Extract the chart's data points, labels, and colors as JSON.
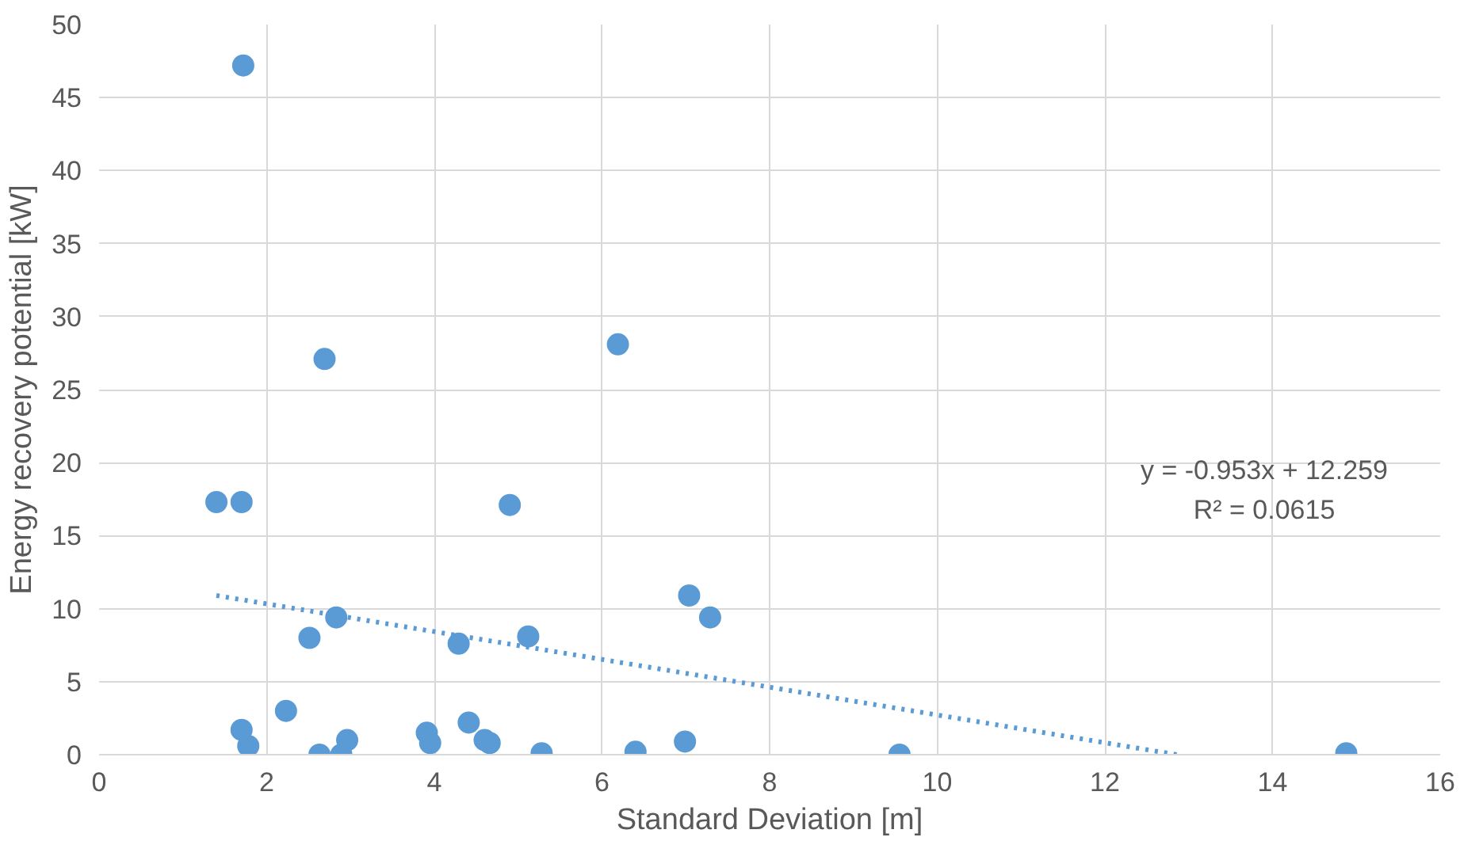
{
  "chart_data": {
    "type": "scatter",
    "xlabel": "Standard Deviation [m]",
    "ylabel": "Energy recovery potential [kW]",
    "xlim": [
      0,
      16
    ],
    "ylim": [
      0,
      50
    ],
    "xticks": [
      0,
      2,
      4,
      6,
      8,
      10,
      12,
      14,
      16
    ],
    "yticks": [
      0,
      5,
      10,
      15,
      20,
      25,
      30,
      35,
      40,
      45,
      50
    ],
    "grid": true,
    "series": [
      {
        "marker": "circle",
        "color": "#5b9bd5",
        "x": [
          1.72,
          1.4,
          1.7,
          2.69,
          6.19,
          4.9,
          2.51,
          2.83,
          4.29,
          5.12,
          7.04,
          7.29,
          2.23,
          1.7,
          1.78,
          2.63,
          2.89,
          2.96,
          3.91,
          3.95,
          4.41,
          4.6,
          4.66,
          5.28,
          6.4,
          6.99,
          9.55,
          14.88
        ],
        "values": [
          47.2,
          17.3,
          17.3,
          27.1,
          28.1,
          17.1,
          8.0,
          9.4,
          7.6,
          8.1,
          10.9,
          9.4,
          3.0,
          1.7,
          0.6,
          0.0,
          0.0,
          1.0,
          1.5,
          0.8,
          2.2,
          1.0,
          0.8,
          0.1,
          0.2,
          0.9,
          0.0,
          0.1
        ]
      },
      {
        "type": "line",
        "color": "#5b9bd5",
        "line_style": "dotted",
        "x": [
          1.4,
          12.86
        ],
        "values": [
          10.9,
          0.0
        ]
      }
    ],
    "annotations": [
      "y = -0.953x + 12.259",
      "R² = 0.0615"
    ]
  }
}
